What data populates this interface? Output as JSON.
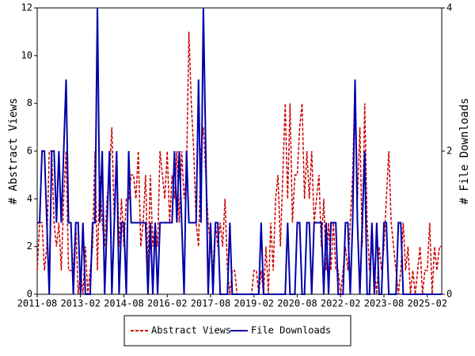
{
  "chart_data": {
    "type": "line",
    "y_label": "# Abstract Views",
    "y2_label": "# File Downloads",
    "x": [
      "2011-08",
      "2011-09",
      "2011-10",
      "2011-11",
      "2011-12",
      "2012-01",
      "2012-02",
      "2012-03",
      "2012-04",
      "2012-05",
      "2012-06",
      "2012-07",
      "2012-08",
      "2012-09",
      "2012-10",
      "2012-11",
      "2012-12",
      "2013-01",
      "2013-02",
      "2013-03",
      "2013-04",
      "2013-05",
      "2013-06",
      "2013-07",
      "2013-08",
      "2013-09",
      "2013-10",
      "2013-11",
      "2013-12",
      "2014-01",
      "2014-02",
      "2014-03",
      "2014-04",
      "2014-05",
      "2014-06",
      "2014-07",
      "2014-08",
      "2014-09",
      "2014-10",
      "2014-11",
      "2014-12",
      "2015-01",
      "2015-02",
      "2015-03",
      "2015-04",
      "2015-05",
      "2015-06",
      "2015-07",
      "2015-08",
      "2015-09",
      "2015-10",
      "2015-11",
      "2015-12",
      "2016-01",
      "2016-02",
      "2016-03",
      "2016-04",
      "2016-05",
      "2016-06",
      "2016-07",
      "2016-08",
      "2016-09",
      "2016-10",
      "2016-11",
      "2016-12",
      "2017-01",
      "2017-02",
      "2017-03",
      "2017-04",
      "2017-05",
      "2017-06",
      "2017-07",
      "2017-08",
      "2017-09",
      "2017-10",
      "2017-11",
      "2017-12",
      "2018-01",
      "2018-02",
      "2018-03",
      "2018-04",
      "2018-05",
      "2018-06",
      "2018-07",
      "2018-08",
      "2018-09",
      "2018-10",
      "2018-11",
      "2018-12",
      "2019-01",
      "2019-02",
      "2019-03",
      "2019-04",
      "2019-05",
      "2019-06",
      "2019-07",
      "2019-08",
      "2019-09",
      "2019-10",
      "2019-11",
      "2019-12",
      "2020-01",
      "2020-02",
      "2020-03",
      "2020-04",
      "2020-05",
      "2020-06",
      "2020-07",
      "2020-08",
      "2020-09",
      "2020-10",
      "2020-11",
      "2020-12",
      "2021-01",
      "2021-02",
      "2021-03",
      "2021-04",
      "2021-05",
      "2021-06",
      "2021-07",
      "2021-08",
      "2021-09",
      "2021-10",
      "2021-11",
      "2021-12",
      "2022-01",
      "2022-02",
      "2022-03",
      "2022-04",
      "2022-05",
      "2022-06",
      "2022-07",
      "2022-08",
      "2022-09",
      "2022-10",
      "2022-11",
      "2022-12",
      "2023-01",
      "2023-02",
      "2023-03",
      "2023-04",
      "2023-05",
      "2023-06",
      "2023-07",
      "2023-08",
      "2023-09",
      "2023-10",
      "2023-11",
      "2023-12",
      "2024-01",
      "2024-02",
      "2024-03",
      "2024-04",
      "2024-05",
      "2024-06",
      "2024-07",
      "2024-08",
      "2024-09",
      "2024-10",
      "2024-11",
      "2024-12",
      "2025-01",
      "2025-02",
      "2025-03",
      "2025-04",
      "2025-05",
      "2025-06",
      "2025-07",
      "2025-08"
    ],
    "series": [
      {
        "name": "Abstract Views",
        "color": "#cc0000",
        "dashed": true,
        "values": [
          1,
          3,
          3,
          1,
          2,
          6,
          6,
          3,
          2,
          3,
          1,
          4,
          6,
          1,
          1,
          1,
          3,
          0,
          1,
          0,
          2,
          0,
          1,
          2,
          6,
          1,
          5,
          3,
          2,
          4,
          5,
          7,
          3,
          6,
          2,
          4,
          2,
          4,
          4,
          5,
          5,
          4,
          6,
          2,
          3,
          5,
          1,
          5,
          2,
          3,
          2,
          6,
          5,
          4,
          6,
          3,
          5,
          4,
          6,
          3,
          6,
          4,
          5,
          11,
          8,
          6,
          3,
          2,
          6,
          7,
          5,
          3,
          2,
          1,
          3,
          2,
          3,
          2,
          4,
          1,
          0,
          1,
          1,
          0,
          0,
          0,
          0,
          0,
          0,
          0,
          1,
          1,
          0,
          1,
          0,
          2,
          0,
          3,
          1,
          4,
          5,
          2,
          5,
          8,
          4,
          8,
          3,
          5,
          5,
          7,
          8,
          4,
          6,
          4,
          6,
          3,
          4,
          5,
          2,
          4,
          1,
          3,
          1,
          3,
          1,
          1,
          0,
          1,
          2,
          1,
          3,
          5,
          9,
          4,
          7,
          2,
          8,
          3,
          1,
          2,
          1,
          0,
          2,
          1,
          2,
          4,
          6,
          3,
          2,
          1,
          0,
          1,
          3,
          1,
          2,
          0,
          1,
          0,
          1,
          2,
          0,
          1,
          1,
          3,
          0,
          2,
          1,
          2,
          2
        ]
      },
      {
        "name": "File Downloads",
        "color": "#0000aa",
        "dashed": false,
        "axis": "y2",
        "values": [
          1,
          1,
          2,
          2,
          1,
          0,
          2,
          2,
          1,
          2,
          1,
          2,
          3,
          1,
          1,
          0,
          1,
          1,
          0,
          1,
          0,
          0,
          0,
          1,
          1,
          4,
          1,
          2,
          0,
          1,
          2,
          0,
          1,
          2,
          0,
          1,
          1,
          0,
          2,
          1,
          1,
          1,
          1,
          1,
          1,
          1,
          0,
          1,
          0,
          1,
          0,
          1,
          1,
          1,
          1,
          1,
          1,
          2,
          1,
          2,
          1,
          0,
          2,
          1,
          1,
          1,
          1,
          3,
          1,
          4,
          2,
          0,
          1,
          0,
          1,
          1,
          0,
          0,
          0,
          0,
          1,
          0,
          0,
          0,
          0,
          0,
          0,
          0,
          0,
          0,
          0,
          0,
          0,
          1,
          0,
          0,
          0,
          0,
          0,
          0,
          0,
          0,
          0,
          0,
          1,
          0,
          0,
          0,
          1,
          1,
          0,
          0,
          1,
          1,
          0,
          1,
          1,
          1,
          1,
          0,
          1,
          0,
          1,
          1,
          1,
          0,
          0,
          0,
          1,
          1,
          0,
          1,
          3,
          1,
          0,
          1,
          2,
          0,
          0,
          1,
          0,
          1,
          0,
          0,
          1,
          1,
          0,
          0,
          0,
          0,
          1,
          1,
          0,
          0,
          0,
          0,
          0,
          0,
          0,
          0,
          0,
          0,
          0,
          0,
          0,
          0,
          0,
          0,
          0
        ]
      }
    ],
    "xlim": [
      "2011-08",
      "2025-08"
    ],
    "xticks": [
      "2011-08",
      "2013-02",
      "2014-08",
      "2016-02",
      "2017-08",
      "2019-02",
      "2020-08",
      "2022-02",
      "2023-08",
      "2025-02"
    ],
    "ylim": [
      0,
      12
    ],
    "yticks": [
      0,
      2,
      4,
      6,
      8,
      10,
      12
    ],
    "y2lim": [
      0,
      4
    ],
    "y2ticks": [
      0,
      2,
      4
    ],
    "legend": "bottom"
  }
}
